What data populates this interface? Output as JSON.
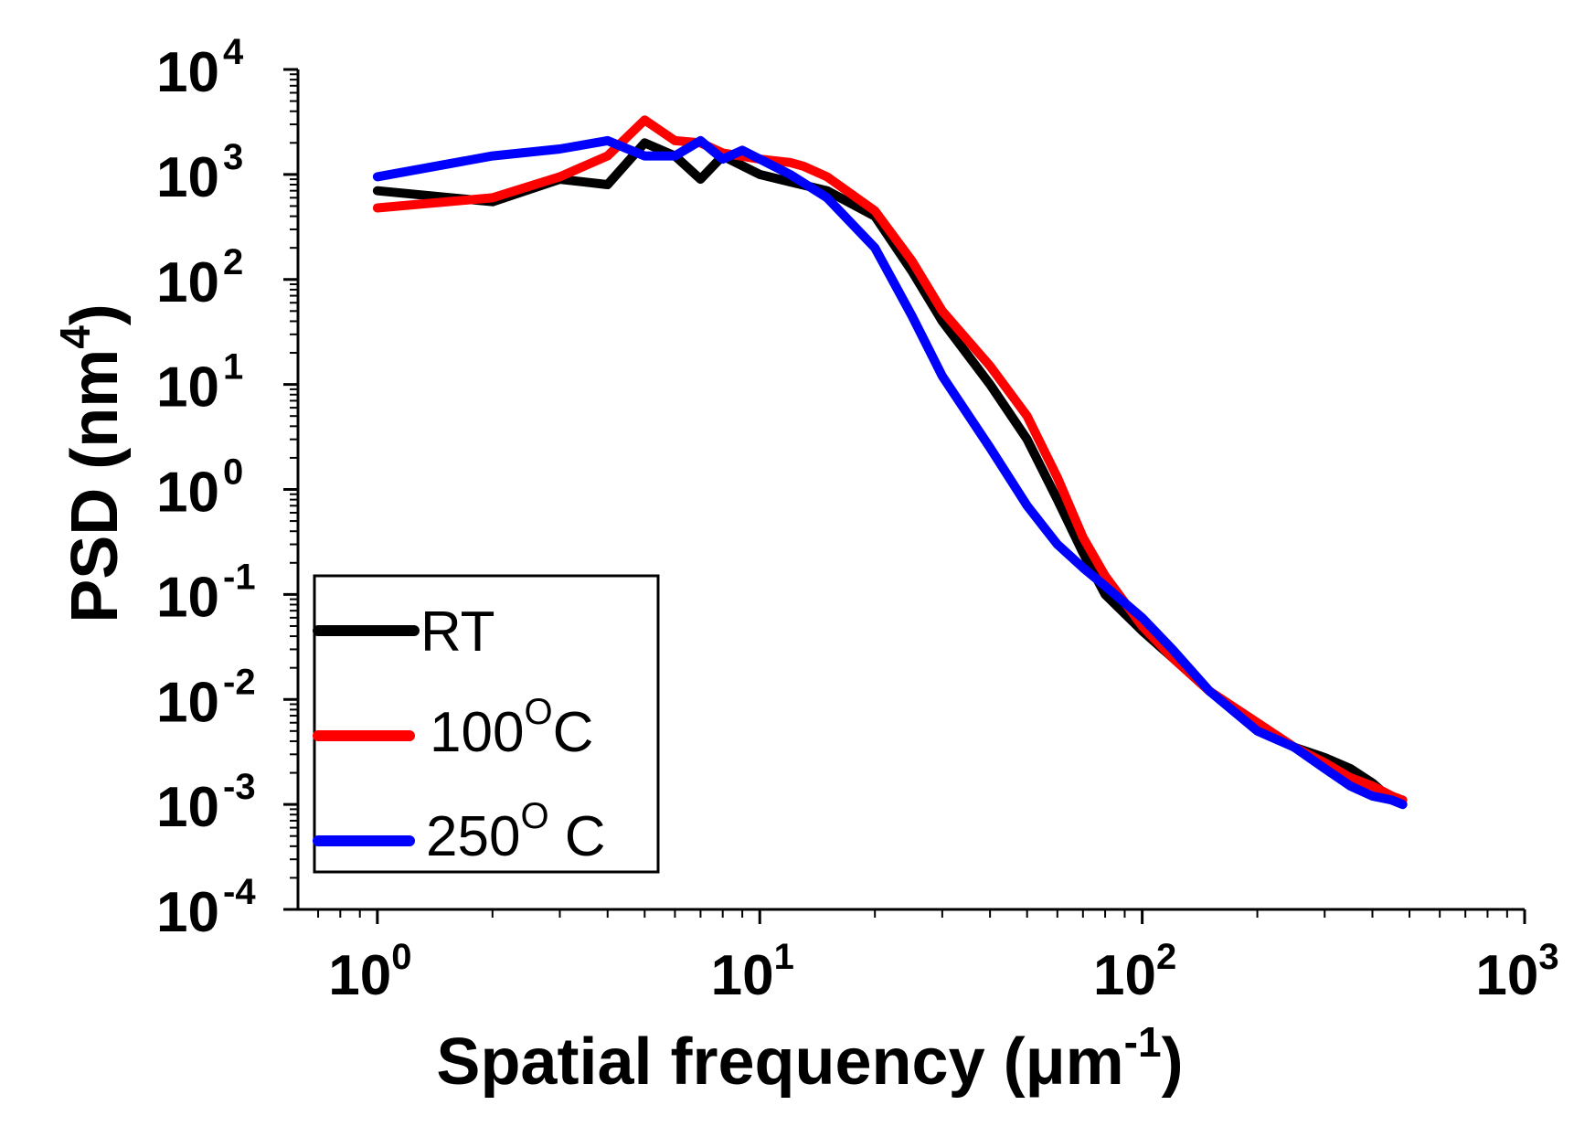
{
  "chart_data": {
    "type": "line",
    "xlabel": {
      "main": "Spatial frequency (",
      "unit": "μm",
      "sup": "-1",
      "close": ")"
    },
    "ylabel": {
      "main": "PSD (nm",
      "sup": "4",
      "close": ")"
    },
    "x_scale": "log",
    "y_scale": "log",
    "xlim": [
      0.62,
      1000
    ],
    "ylim": [
      0.0001,
      10000
    ],
    "x_ticks": [
      {
        "base": "10",
        "exp": "0",
        "value": 1
      },
      {
        "base": "10",
        "exp": "1",
        "value": 10
      },
      {
        "base": "10",
        "exp": "2",
        "value": 100
      },
      {
        "base": "10",
        "exp": "3",
        "value": 1000
      }
    ],
    "y_ticks": [
      {
        "base": "10",
        "exp": "4",
        "value": 10000
      },
      {
        "base": "10",
        "exp": "3",
        "value": 1000
      },
      {
        "base": "10",
        "exp": "2",
        "value": 100
      },
      {
        "base": "10",
        "exp": "1",
        "value": 10
      },
      {
        "base": "10",
        "exp": "0",
        "value": 1
      },
      {
        "base": "10",
        "exp": "-1",
        "value": 0.1
      },
      {
        "base": "10",
        "exp": "-2",
        "value": 0.01
      },
      {
        "base": "10",
        "exp": "-3",
        "value": 0.001
      },
      {
        "base": "10",
        "exp": "-4",
        "value": 0.0001
      }
    ],
    "grid": false,
    "legend_position": "bottom-left",
    "series": [
      {
        "name": "RT",
        "legend": {
          "main": "RT",
          "sup": "",
          "suffix": ""
        },
        "color": "#000000",
        "x": [
          1,
          2,
          3,
          4,
          5,
          6,
          7,
          8,
          10,
          12,
          15,
          20,
          25,
          30,
          40,
          50,
          60,
          70,
          80,
          100,
          120,
          150,
          200,
          250,
          300,
          350,
          400,
          450,
          480
        ],
        "y": [
          700,
          550,
          900,
          800,
          2000,
          1500,
          900,
          1500,
          1000,
          850,
          700,
          400,
          120,
          40,
          10,
          3,
          0.8,
          0.25,
          0.1,
          0.045,
          0.025,
          0.012,
          0.0055,
          0.0035,
          0.0028,
          0.0022,
          0.0016,
          0.0011,
          0.001
        ]
      },
      {
        "name": "100°C",
        "legend": {
          "main": "100",
          "sup": "O",
          "suffix": "C"
        },
        "color": "#ff0000",
        "x": [
          1,
          2,
          3,
          4,
          5,
          6,
          7,
          8,
          10,
          12,
          13,
          15,
          20,
          25,
          30,
          40,
          50,
          60,
          70,
          80,
          100,
          120,
          150,
          200,
          250,
          300,
          350,
          400,
          450,
          480
        ],
        "y": [
          480,
          600,
          950,
          1500,
          3300,
          2100,
          2000,
          1600,
          1400,
          1300,
          1200,
          950,
          450,
          150,
          50,
          15,
          5,
          1.3,
          0.35,
          0.15,
          0.05,
          0.025,
          0.012,
          0.006,
          0.0035,
          0.0025,
          0.0018,
          0.0015,
          0.0012,
          0.0011
        ]
      },
      {
        "name": "250° C",
        "legend": {
          "main": "250",
          "sup": "O",
          "suffix": " C"
        },
        "color": "#0000ff",
        "x": [
          1,
          2,
          3,
          4,
          5,
          6,
          7,
          8,
          9,
          10,
          12,
          15,
          20,
          25,
          30,
          40,
          50,
          60,
          70,
          80,
          100,
          120,
          150,
          200,
          250,
          300,
          350,
          400,
          450,
          480
        ],
        "y": [
          950,
          1500,
          1750,
          2100,
          1500,
          1500,
          2100,
          1400,
          1700,
          1400,
          1000,
          600,
          200,
          45,
          12,
          2.5,
          0.7,
          0.3,
          0.18,
          0.12,
          0.06,
          0.03,
          0.012,
          0.005,
          0.0035,
          0.0022,
          0.0015,
          0.0012,
          0.0011,
          0.001
        ]
      }
    ]
  }
}
